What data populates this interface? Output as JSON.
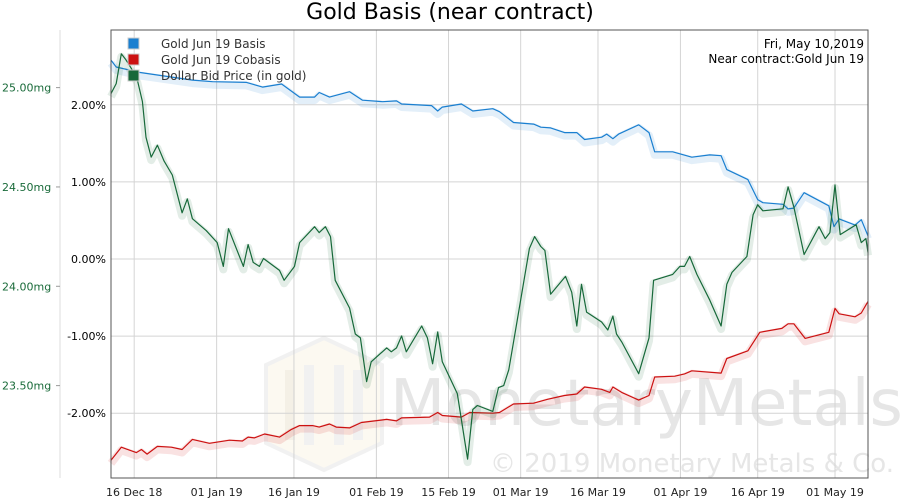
{
  "chart_data": {
    "type": "line",
    "title": "Gold Basis (near contract)",
    "info": {
      "date": "Fri, May 10,2019",
      "contract": "Near contract:Gold Jun 19"
    },
    "x_units": "days since 16 Dec 2018",
    "xlim": [
      -4.5,
      142.4
    ],
    "x_ticks": [
      {
        "label": "16 Dec 18",
        "x": 0
      },
      {
        "label": "01 Jan 19",
        "x": 16
      },
      {
        "label": "16 Jan 19",
        "x": 31
      },
      {
        "label": "01 Feb 19",
        "x": 47
      },
      {
        "label": "15 Feb 19",
        "x": 61
      },
      {
        "label": "01 Mar 19",
        "x": 75
      },
      {
        "label": "16 Mar 19",
        "x": 90
      },
      {
        "label": "01 Apr 19",
        "x": 106
      },
      {
        "label": "16 Apr 19",
        "x": 121
      },
      {
        "label": "01 May 19",
        "x": 136
      }
    ],
    "y_left": {
      "ylim": [
        23.035,
        25.29
      ],
      "ticks": [
        {
          "label": "25.00mg",
          "v": 25.0
        },
        {
          "label": "24.50mg",
          "v": 24.5
        },
        {
          "label": "24.00mg",
          "v": 24.0
        },
        {
          "label": "23.50mg",
          "v": 23.5
        }
      ]
    },
    "y_right": {
      "ylim": [
        -2.84,
        2.97
      ],
      "ticks": [
        {
          "label": "2.00%",
          "v": 2
        },
        {
          "label": "1.00%",
          "v": 1
        },
        {
          "label": "0.00%",
          "v": 0
        },
        {
          "label": "-1.00%",
          "v": -1
        },
        {
          "label": "-2.00%",
          "v": -2
        }
      ]
    },
    "grid": true,
    "legend_position": "top-left",
    "series": [
      {
        "name": "Gold Jun 19 Basis",
        "color": "#1a7fd0",
        "axis": "percent",
        "x": [
          -4.5,
          -3.5,
          1.0,
          11.3,
          15.2,
          21.8,
          24.9,
          28.6,
          32.1,
          35.0,
          35.9,
          37.9,
          41.8,
          44.3,
          48.2,
          50.9,
          51.9,
          57.7,
          58.9,
          59.8,
          63.5,
          65.7,
          69.6,
          70.9,
          73.6,
          77.5,
          78.9,
          80.8,
          83.5,
          85.9,
          87.4,
          90.7,
          91.7,
          92.9,
          94.0,
          97.9,
          99.9,
          101.0,
          104.5,
          108.2,
          111.7,
          113.9,
          115.0,
          119.1,
          121.0,
          122.0,
          125.9,
          126.9,
          128.0,
          130.0,
          134.8,
          135.8,
          136.8,
          139.9,
          141.1,
          142.4
        ],
        "y": [
          2.58,
          2.49,
          2.42,
          2.32,
          2.3,
          2.29,
          2.23,
          2.27,
          2.1,
          2.1,
          2.16,
          2.1,
          2.17,
          2.06,
          2.04,
          2.05,
          2.01,
          1.99,
          1.92,
          1.97,
          2.01,
          1.92,
          1.95,
          1.91,
          1.77,
          1.75,
          1.71,
          1.7,
          1.64,
          1.64,
          1.55,
          1.58,
          1.62,
          1.56,
          1.62,
          1.74,
          1.64,
          1.39,
          1.39,
          1.32,
          1.35,
          1.34,
          1.16,
          1.03,
          0.77,
          0.73,
          0.71,
          0.65,
          0.66,
          0.86,
          0.69,
          0.42,
          0.52,
          0.44,
          0.51,
          0.3
        ]
      },
      {
        "name": "Gold Jun 19 Cobasis",
        "color": "#cc1111",
        "axis": "percent",
        "x": [
          -4.5,
          -2.5,
          0.4,
          1.4,
          2.5,
          4.5,
          7.2,
          9.3,
          11.3,
          14.6,
          18.5,
          21.0,
          22.1,
          23.3,
          25.3,
          28.2,
          30.5,
          32.1,
          34.6,
          35.9,
          37.9,
          39.2,
          41.8,
          44.1,
          49.0,
          50.9,
          51.9,
          57.3,
          58.9,
          59.8,
          63.5,
          65.1,
          69.6,
          70.9,
          73.6,
          77.5,
          80.2,
          83.5,
          85.9,
          87.4,
          90.7,
          92.3,
          92.9,
          94.6,
          97.9,
          99.9,
          101.0,
          104.9,
          106.8,
          108.2,
          113.9,
          115.0,
          119.1,
          121.4,
          125.7,
          126.9,
          128.0,
          130.2,
          134.8,
          136.0,
          136.8,
          139.9,
          141.1,
          142.4
        ],
        "y": [
          -2.61,
          -2.44,
          -2.51,
          -2.47,
          -2.53,
          -2.43,
          -2.44,
          -2.47,
          -2.34,
          -2.39,
          -2.35,
          -2.36,
          -2.31,
          -2.32,
          -2.27,
          -2.31,
          -2.21,
          -2.16,
          -2.16,
          -2.18,
          -2.14,
          -2.18,
          -2.19,
          -2.12,
          -2.08,
          -2.1,
          -2.06,
          -2.05,
          -1.99,
          -2.03,
          -2.05,
          -1.99,
          -2.0,
          -1.99,
          -1.88,
          -1.87,
          -1.82,
          -1.77,
          -1.75,
          -1.66,
          -1.69,
          -1.73,
          -1.66,
          -1.73,
          -1.83,
          -1.77,
          -1.53,
          -1.52,
          -1.49,
          -1.45,
          -1.48,
          -1.29,
          -1.19,
          -0.95,
          -0.9,
          -0.84,
          -0.84,
          -1.03,
          -0.95,
          -0.64,
          -0.71,
          -0.75,
          -0.7,
          -0.55
        ]
      },
      {
        "name": "Dollar Bid Price (in gold)",
        "color": "#17693a",
        "axis": "mg",
        "x": [
          -4.5,
          -3.5,
          -2.5,
          -1.6,
          -0.4,
          0.6,
          1.6,
          2.3,
          3.3,
          4.5,
          5.8,
          7.4,
          9.3,
          10.3,
          11.3,
          14.0,
          16.1,
          17.3,
          18.3,
          21.2,
          22.1,
          23.1,
          24.3,
          25.1,
          28.2,
          29.1,
          31.1,
          32.1,
          35.0,
          35.9,
          37.1,
          38.1,
          39.0,
          41.8,
          42.9,
          43.9,
          45.1,
          46.0,
          49.0,
          49.9,
          50.9,
          51.9,
          52.8,
          55.8,
          56.9,
          57.9,
          58.9,
          59.8,
          62.7,
          64.7,
          65.7,
          66.6,
          69.6,
          70.7,
          71.7,
          72.7,
          74.2,
          76.7,
          77.7,
          78.9,
          79.7,
          80.8,
          83.7,
          84.9,
          85.9,
          86.8,
          87.8,
          90.7,
          91.9,
          92.9,
          93.6,
          94.6,
          97.9,
          99.9,
          100.8,
          104.5,
          105.9,
          106.8,
          107.8,
          109.2,
          111.7,
          113.9,
          115.0,
          116.0,
          118.9,
          120.1,
          121.0,
          122.0,
          125.9,
          126.9,
          128.0,
          130.0,
          132.9,
          134.1,
          135.0,
          136.0,
          137.0,
          140.1,
          141.1,
          142.0,
          142.4
        ],
        "y": [
          24.97,
          25.02,
          25.17,
          25.14,
          25.09,
          25.04,
          24.93,
          24.75,
          24.65,
          24.71,
          24.63,
          24.56,
          24.37,
          24.44,
          24.34,
          24.28,
          24.22,
          24.1,
          24.29,
          24.1,
          24.21,
          24.12,
          24.1,
          24.14,
          24.08,
          24.03,
          24.1,
          24.22,
          24.3,
          24.27,
          24.3,
          24.25,
          24.03,
          23.89,
          23.76,
          23.74,
          23.52,
          23.62,
          23.69,
          23.67,
          23.69,
          23.75,
          23.67,
          23.8,
          23.74,
          23.61,
          23.77,
          23.62,
          23.46,
          23.13,
          23.38,
          23.4,
          23.37,
          23.49,
          23.5,
          23.58,
          23.81,
          24.19,
          24.25,
          24.2,
          24.18,
          23.96,
          24.05,
          23.97,
          23.8,
          24.01,
          23.87,
          23.82,
          23.78,
          23.85,
          23.76,
          23.72,
          23.56,
          23.74,
          24.03,
          24.06,
          24.1,
          24.1,
          24.15,
          24.06,
          23.93,
          23.8,
          24.01,
          24.07,
          24.15,
          24.36,
          24.41,
          24.38,
          24.39,
          24.5,
          24.4,
          24.16,
          24.3,
          24.24,
          24.27,
          24.51,
          24.26,
          24.31,
          24.22,
          24.24,
          24.17
        ]
      }
    ],
    "watermark": {
      "brand": "MonetaryMetals",
      "copyright": "© 2019 Monetary Metals & Co."
    }
  }
}
